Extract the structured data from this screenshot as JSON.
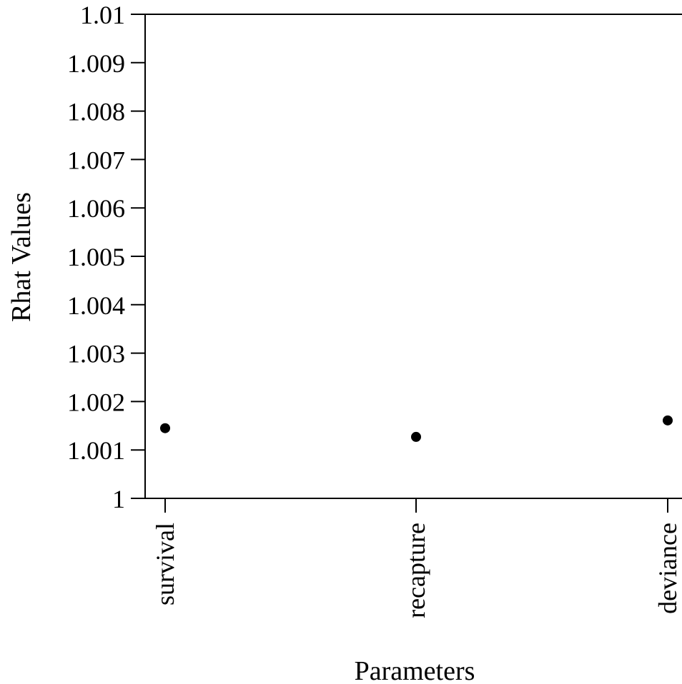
{
  "chart_data": {
    "type": "scatter",
    "title": "",
    "xlabel": "Parameters",
    "ylabel": "Rhat Values",
    "categories": [
      "survival",
      "recapture",
      "deviance"
    ],
    "values": [
      1.00145,
      1.00127,
      1.00161
    ],
    "ylim": [
      1,
      1.01
    ],
    "yticks": [
      1,
      1.001,
      1.002,
      1.003,
      1.004,
      1.005,
      1.006,
      1.007,
      1.008,
      1.009,
      1.01
    ],
    "ytick_labels": [
      "1",
      "1.001",
      "1.002",
      "1.003",
      "1.004",
      "1.005",
      "1.006",
      "1.007",
      "1.008",
      "1.009",
      "1.01"
    ],
    "grid": false,
    "legend": "none"
  }
}
